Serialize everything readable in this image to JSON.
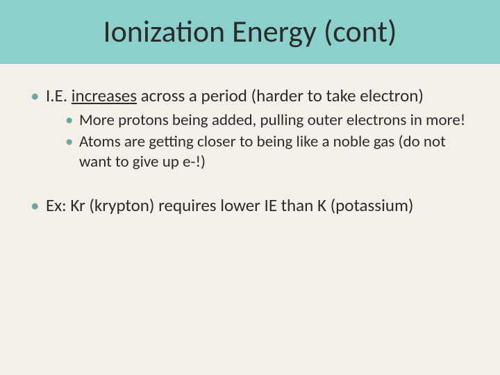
{
  "slide": {
    "title": "Ionization Energy (cont)",
    "background_color": "#f4efe8",
    "title_band_color": "#8cd0cc",
    "title_fontsize": 44,
    "title_color": "#2b2b2b",
    "bullet_color": "#6aa89f",
    "body_fontsize_outer": 25,
    "body_fontsize_inner": 23,
    "bullets": [
      {
        "prefix": "I.E. ",
        "underlined": "increases",
        "suffix": " across a period (harder to take electron)",
        "children": [
          "More protons being added, pulling outer electrons in more!",
          "Atoms are getting closer to being like a noble gas (do not want to give up e-!)"
        ]
      },
      {
        "prefix": "Ex: Kr (krypton) requires lower IE than K (potassium)",
        "underlined": "",
        "suffix": "",
        "children": []
      }
    ]
  }
}
